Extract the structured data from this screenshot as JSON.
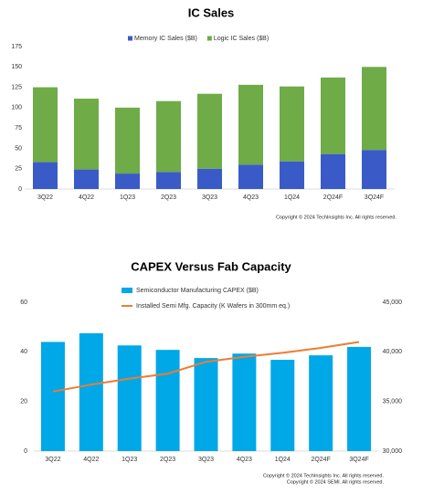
{
  "chart_data": [
    {
      "type": "bar",
      "stacked": true,
      "title": "IC Sales",
      "categories": [
        "3Q22",
        "4Q22",
        "1Q23",
        "2Q23",
        "3Q23",
        "4Q23",
        "1Q24",
        "2Q24F",
        "3Q24F"
      ],
      "series": [
        {
          "name": "Memory IC Sales ($B)",
          "color": "#3a5bc7",
          "values": [
            33,
            24,
            19,
            21,
            25,
            30,
            34,
            43,
            48
          ]
        },
        {
          "name": "Logic IC Sales ($B)",
          "color": "#6fab47",
          "values": [
            92,
            87,
            81,
            87,
            92,
            98,
            92,
            94,
            102
          ]
        }
      ],
      "ylim": [
        0,
        175
      ],
      "yticks": [
        0,
        25,
        50,
        75,
        100,
        125,
        150,
        175
      ],
      "copyright": [
        "Copyright © 2024 TechInsights Inc.  All rights reserved."
      ]
    },
    {
      "type": "bar-line",
      "title": "CAPEX Versus Fab Capacity",
      "categories": [
        "3Q22",
        "4Q22",
        "1Q23",
        "2Q23",
        "3Q23",
        "4Q23",
        "1Q24",
        "2Q24F",
        "3Q24F"
      ],
      "series": [
        {
          "name": "Semiconductor Manufacturing CAPEX ($B)",
          "color": "#00a8e8",
          "values": [
            44,
            47.5,
            42.6,
            40.8,
            37.5,
            39.3,
            36.8,
            38.6,
            42
          ]
        },
        {
          "name": "Installed Semi Mfg. Capacity (K Wafers in 300mm eq.)",
          "color": "#ed7d31",
          "axis": "y2",
          "values": [
            36000,
            36700,
            37300,
            37800,
            39000,
            39500,
            39900,
            40400,
            41000
          ]
        }
      ],
      "ylim": [
        0,
        60
      ],
      "yticks": [
        0,
        20,
        40,
        60
      ],
      "y2lim": [
        30000,
        45000
      ],
      "y2ticks": [
        {
          "value": 30000,
          "label": "30,000"
        },
        {
          "value": 35000,
          "label": "35,000"
        },
        {
          "value": 40000,
          "label": "40,000"
        },
        {
          "value": 45000,
          "label": "45,000"
        }
      ],
      "copyright": [
        "Copyright © 2024 TechInsights Inc.  All rights reserved.",
        "Copyright © 2024 SEMI.  All rights reserved."
      ]
    }
  ]
}
